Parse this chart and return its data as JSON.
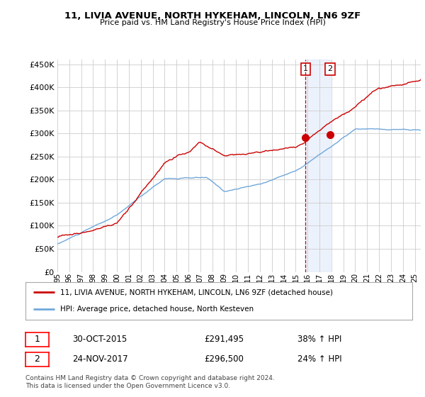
{
  "title": "11, LIVIA AVENUE, NORTH HYKEHAM, LINCOLN, LN6 9ZF",
  "subtitle": "Price paid vs. HM Land Registry's House Price Index (HPI)",
  "ylim": [
    0,
    460000
  ],
  "yticks": [
    0,
    50000,
    100000,
    150000,
    200000,
    250000,
    300000,
    350000,
    400000,
    450000
  ],
  "xlim_start": 1995.0,
  "xlim_end": 2025.5,
  "sale1_date": 2015.83,
  "sale1_price": 291495,
  "sale1_label": "1",
  "sale2_date": 2017.9,
  "sale2_price": 296500,
  "sale2_label": "2",
  "hpi_color": "#6fa8dc",
  "price_color": "#cc0000",
  "shade_color": "#c9daf8",
  "legend_line1": "11, LIVIA AVENUE, NORTH HYKEHAM, LINCOLN, LN6 9ZF (detached house)",
  "legend_line2": "HPI: Average price, detached house, North Kesteven",
  "table_row1_num": "1",
  "table_row1_date": "30-OCT-2015",
  "table_row1_price": "£291,495",
  "table_row1_hpi": "38% ↑ HPI",
  "table_row2_num": "2",
  "table_row2_date": "24-NOV-2017",
  "table_row2_price": "£296,500",
  "table_row2_hpi": "24% ↑ HPI",
  "footnote": "Contains HM Land Registry data © Crown copyright and database right 2024.\nThis data is licensed under the Open Government Licence v3.0.",
  "background_color": "#ffffff",
  "plot_bg_color": "#ffffff",
  "grid_color": "#cccccc"
}
